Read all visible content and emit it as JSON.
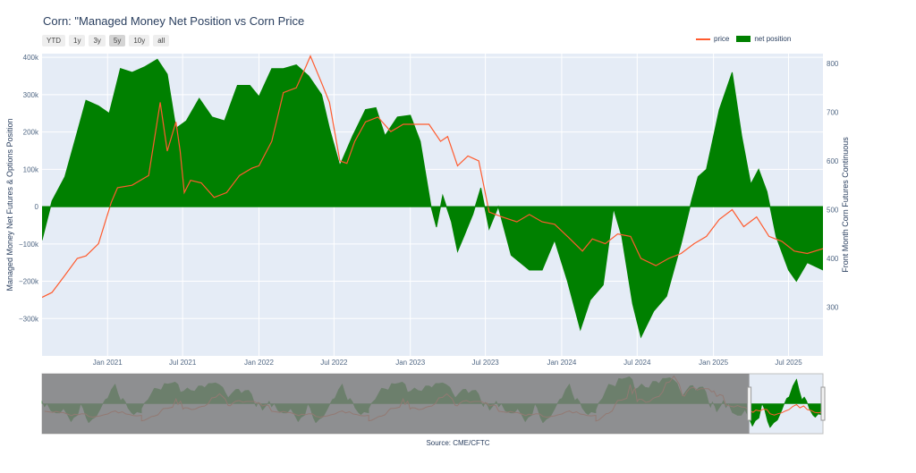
{
  "title": "Corn: \"Managed Money Net Position vs Corn Price",
  "range_buttons": [
    {
      "label": "YTD",
      "active": false
    },
    {
      "label": "1y",
      "active": false
    },
    {
      "label": "3y",
      "active": false
    },
    {
      "label": "5y",
      "active": true
    },
    {
      "label": "10y",
      "active": false
    },
    {
      "label": "all",
      "active": false
    }
  ],
  "legend": {
    "price_label": "price",
    "net_label": "net position"
  },
  "source": "Source: CME/CFTC",
  "colors": {
    "price": "#ff5b2e",
    "net": "#008000",
    "plot_bg": "#e5ecf6",
    "grid": "#ffffff",
    "range_mask": "#7f7f7f"
  },
  "chart_data": {
    "type": "area",
    "y_left_title": "Managed Money Net Futures & Options Position",
    "y_right_title": "Front Month Corn Futures Continuous",
    "y_left_ticks": [
      {
        "value": 400000,
        "label": "400k"
      },
      {
        "value": 300000,
        "label": "300k"
      },
      {
        "value": 200000,
        "label": "200k"
      },
      {
        "value": 100000,
        "label": "100k"
      },
      {
        "value": 0,
        "label": "0"
      },
      {
        "value": -100000,
        "label": "−100k"
      },
      {
        "value": -200000,
        "label": "−200k"
      },
      {
        "value": -300000,
        "label": "−300k"
      }
    ],
    "y_right_ticks": [
      {
        "value": 800,
        "label": "800"
      },
      {
        "value": 700,
        "label": "700"
      },
      {
        "value": 600,
        "label": "600"
      },
      {
        "value": 500,
        "label": "500"
      },
      {
        "value": 400,
        "label": "400"
      },
      {
        "value": 300,
        "label": "300"
      }
    ],
    "x_ticks": [
      {
        "value": "2021-01-01",
        "label": "Jan 2021"
      },
      {
        "value": "2021-07-01",
        "label": "Jul 2021"
      },
      {
        "value": "2022-01-01",
        "label": "Jan 2022"
      },
      {
        "value": "2022-07-01",
        "label": "Jul 2022"
      },
      {
        "value": "2023-01-01",
        "label": "Jan 2023"
      },
      {
        "value": "2023-07-01",
        "label": "Jul 2023"
      },
      {
        "value": "2024-01-01",
        "label": "Jan 2024"
      },
      {
        "value": "2024-07-01",
        "label": "Jul 2024"
      },
      {
        "value": "2025-01-01",
        "label": "Jan 2025"
      },
      {
        "value": "2025-07-01",
        "label": "Jul 2025"
      }
    ],
    "x_range": [
      "2020-07-27",
      "2025-09-22"
    ],
    "y_left_range": [
      -400000,
      410000
    ],
    "y_right_range": [
      200,
      820
    ],
    "grid": true,
    "legend_position": "top-right",
    "series": [
      {
        "name": "net position",
        "axis": "left",
        "style": "area-to-zero",
        "points": [
          [
            "2020-07-27",
            -90000
          ],
          [
            "2020-08-20",
            15000
          ],
          [
            "2020-09-20",
            80000
          ],
          [
            "2020-10-20",
            200000
          ],
          [
            "2020-11-10",
            285000
          ],
          [
            "2020-12-10",
            270000
          ],
          [
            "2021-01-05",
            250000
          ],
          [
            "2021-02-01",
            370000
          ],
          [
            "2021-03-01",
            360000
          ],
          [
            "2021-04-01",
            375000
          ],
          [
            "2021-05-01",
            395000
          ],
          [
            "2021-05-25",
            355000
          ],
          [
            "2021-06-15",
            210000
          ],
          [
            "2021-07-10",
            230000
          ],
          [
            "2021-08-10",
            290000
          ],
          [
            "2021-09-10",
            240000
          ],
          [
            "2021-10-10",
            230000
          ],
          [
            "2021-11-10",
            325000
          ],
          [
            "2021-12-10",
            325000
          ],
          [
            "2022-01-01",
            295000
          ],
          [
            "2022-02-01",
            370000
          ],
          [
            "2022-03-01",
            370000
          ],
          [
            "2022-04-01",
            380000
          ],
          [
            "2022-05-01",
            350000
          ],
          [
            "2022-06-01",
            300000
          ],
          [
            "2022-06-20",
            210000
          ],
          [
            "2022-07-15",
            110000
          ],
          [
            "2022-08-15",
            190000
          ],
          [
            "2022-09-15",
            260000
          ],
          [
            "2022-10-10",
            265000
          ],
          [
            "2022-11-01",
            190000
          ],
          [
            "2022-12-01",
            240000
          ],
          [
            "2023-01-01",
            245000
          ],
          [
            "2023-01-25",
            175000
          ],
          [
            "2023-02-20",
            0
          ],
          [
            "2023-03-05",
            -55000
          ],
          [
            "2023-03-20",
            30000
          ],
          [
            "2023-04-10",
            -40000
          ],
          [
            "2023-04-25",
            -120000
          ],
          [
            "2023-05-10",
            -80000
          ],
          [
            "2023-06-01",
            -20000
          ],
          [
            "2023-06-20",
            50000
          ],
          [
            "2023-07-10",
            -60000
          ],
          [
            "2023-08-01",
            0
          ],
          [
            "2023-09-01",
            -130000
          ],
          [
            "2023-10-15",
            -170000
          ],
          [
            "2023-11-15",
            -170000
          ],
          [
            "2023-12-15",
            -90000
          ],
          [
            "2024-01-15",
            -200000
          ],
          [
            "2024-02-15",
            -330000
          ],
          [
            "2024-03-10",
            -250000
          ],
          [
            "2024-04-10",
            -210000
          ],
          [
            "2024-05-05",
            -5000
          ],
          [
            "2024-05-25",
            -80000
          ],
          [
            "2024-06-20",
            -260000
          ],
          [
            "2024-07-10",
            -350000
          ],
          [
            "2024-08-10",
            -280000
          ],
          [
            "2024-09-10",
            -240000
          ],
          [
            "2024-10-15",
            -100000
          ],
          [
            "2024-11-10",
            20000
          ],
          [
            "2024-11-25",
            80000
          ],
          [
            "2024-12-15",
            100000
          ],
          [
            "2025-01-15",
            260000
          ],
          [
            "2025-02-15",
            360000
          ],
          [
            "2025-03-10",
            190000
          ],
          [
            "2025-04-01",
            60000
          ],
          [
            "2025-04-20",
            100000
          ],
          [
            "2025-05-10",
            40000
          ],
          [
            "2025-06-01",
            -80000
          ],
          [
            "2025-07-01",
            -170000
          ],
          [
            "2025-07-20",
            -200000
          ],
          [
            "2025-08-15",
            -150000
          ],
          [
            "2025-09-22",
            -170000
          ]
        ]
      },
      {
        "name": "price",
        "axis": "right",
        "style": "line",
        "points": [
          [
            "2020-07-27",
            320
          ],
          [
            "2020-08-20",
            330
          ],
          [
            "2020-09-20",
            365
          ],
          [
            "2020-10-20",
            400
          ],
          [
            "2020-11-10",
            405
          ],
          [
            "2020-12-10",
            430
          ],
          [
            "2021-01-10",
            515
          ],
          [
            "2021-01-25",
            545
          ],
          [
            "2021-03-01",
            550
          ],
          [
            "2021-04-10",
            570
          ],
          [
            "2021-05-08",
            720
          ],
          [
            "2021-05-25",
            620
          ],
          [
            "2021-06-15",
            680
          ],
          [
            "2021-06-25",
            620
          ],
          [
            "2021-07-05",
            535
          ],
          [
            "2021-07-20",
            560
          ],
          [
            "2021-08-15",
            555
          ],
          [
            "2021-09-15",
            525
          ],
          [
            "2021-10-15",
            535
          ],
          [
            "2021-11-15",
            570
          ],
          [
            "2021-12-15",
            585
          ],
          [
            "2022-01-01",
            590
          ],
          [
            "2022-02-01",
            640
          ],
          [
            "2022-03-01",
            740
          ],
          [
            "2022-04-01",
            750
          ],
          [
            "2022-04-25",
            795
          ],
          [
            "2022-05-05",
            815
          ],
          [
            "2022-06-01",
            760
          ],
          [
            "2022-06-20",
            720
          ],
          [
            "2022-07-15",
            600
          ],
          [
            "2022-08-01",
            595
          ],
          [
            "2022-08-20",
            640
          ],
          [
            "2022-09-15",
            680
          ],
          [
            "2022-10-15",
            690
          ],
          [
            "2022-11-15",
            660
          ],
          [
            "2022-12-15",
            675
          ],
          [
            "2023-01-15",
            675
          ],
          [
            "2023-02-15",
            675
          ],
          [
            "2023-03-15",
            640
          ],
          [
            "2023-04-01",
            650
          ],
          [
            "2023-04-25",
            590
          ],
          [
            "2023-05-20",
            610
          ],
          [
            "2023-06-15",
            600
          ],
          [
            "2023-07-10",
            495
          ],
          [
            "2023-08-10",
            485
          ],
          [
            "2023-09-15",
            475
          ],
          [
            "2023-10-15",
            490
          ],
          [
            "2023-11-15",
            475
          ],
          [
            "2023-12-15",
            470
          ],
          [
            "2024-01-15",
            445
          ],
          [
            "2024-02-20",
            415
          ],
          [
            "2024-03-15",
            440
          ],
          [
            "2024-04-15",
            430
          ],
          [
            "2024-05-15",
            450
          ],
          [
            "2024-06-15",
            445
          ],
          [
            "2024-07-10",
            400
          ],
          [
            "2024-08-15",
            385
          ],
          [
            "2024-09-15",
            400
          ],
          [
            "2024-10-15",
            410
          ],
          [
            "2024-11-15",
            430
          ],
          [
            "2024-12-15",
            445
          ],
          [
            "2025-01-15",
            480
          ],
          [
            "2025-02-15",
            500
          ],
          [
            "2025-03-15",
            465
          ],
          [
            "2025-04-15",
            485
          ],
          [
            "2025-05-15",
            445
          ],
          [
            "2025-06-15",
            435
          ],
          [
            "2025-07-15",
            415
          ],
          [
            "2025-08-15",
            410
          ],
          [
            "2025-09-22",
            420
          ]
        ]
      }
    ],
    "range_selector": {
      "selected_start": "2024-01-20",
      "selected_end": "2025-09-22",
      "preview_start": "2008-01-01"
    }
  }
}
